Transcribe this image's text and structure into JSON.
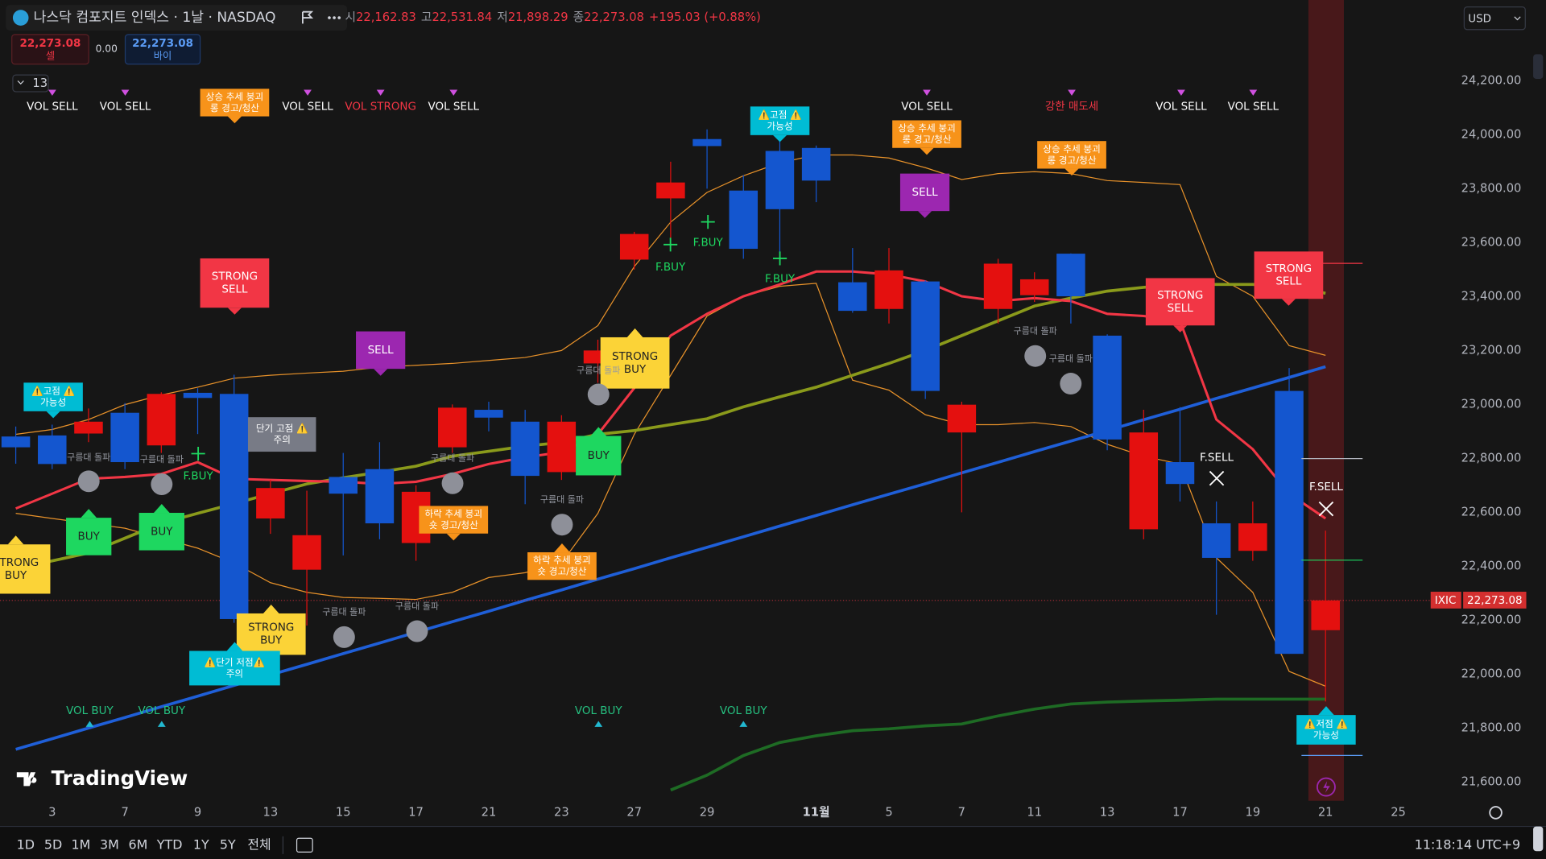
{
  "header": {
    "symbol": "나스닥 컴포지트 인덱스 · 1날 · NASDAQ",
    "open_label": "시",
    "open": "22,162.83",
    "high_label": "고",
    "high": "22,531.84",
    "low_label": "저",
    "low": "21,898.29",
    "close_label": "종",
    "close": "22,273.08",
    "change": "+195.03 (+0.88%)"
  },
  "order": {
    "sell_price": "22,273.08",
    "sell_label": "셀",
    "spread": "0.00",
    "buy_price": "22,273.08",
    "buy_label": "바이"
  },
  "indicator_count": "13",
  "currency": "USD",
  "price_tag": {
    "symbol": "IXIC",
    "price": "22,273.08"
  },
  "logo": "TradingView",
  "chart_data": {
    "type": "candlestick",
    "categories": [
      null,
      "3",
      null,
      "7",
      null,
      "9",
      null,
      "13",
      null,
      "15",
      null,
      "17",
      null,
      "21",
      null,
      "23",
      null,
      "27",
      null,
      "29",
      null,
      null,
      "11월",
      null,
      "5",
      null,
      "7",
      null,
      "11",
      null,
      "13",
      null,
      "17",
      null,
      "19",
      null,
      "21",
      null,
      "25"
    ],
    "open": [
      22881,
      22885,
      22892,
      22969,
      22848,
      23043,
      23039,
      22577,
      22387,
      22731,
      22760,
      22486,
      22841,
      22980,
      22936,
      22749,
      23152,
      23537,
      23764,
      23984,
      23793,
      23940,
      23951,
      23453,
      23354,
      23456,
      22896,
      23354,
      23405,
      23559,
      23255,
      22537,
      22786,
      22559,
      22457,
      23050,
      22162.83,
      null,
      null
    ],
    "high": [
      22918,
      22925,
      22985,
      23005,
      23045,
      23060,
      23110,
      22720,
      22680,
      22820,
      22860,
      22700,
      23000,
      23010,
      22980,
      22960,
      23240,
      23640,
      23900,
      24020,
      23850,
      23980,
      23960,
      23580,
      23580,
      23460,
      23010,
      23540,
      23490,
      23560,
      23260,
      22980,
      22990,
      22640,
      22640,
      23135,
      22531.84,
      null,
      null
    ],
    "low": [
      22780,
      22760,
      22860,
      22760,
      22820,
      22890,
      22190,
      22520,
      22180,
      22440,
      22500,
      22420,
      22820,
      22900,
      22630,
      22720,
      23080,
      23500,
      23590,
      23800,
      23540,
      23560,
      23750,
      23340,
      23300,
      23020,
      22600,
      23300,
      23380,
      23300,
      22830,
      22500,
      22640,
      22220,
      22420,
      22075,
      21898.29,
      null,
      null
    ],
    "close": [
      22841,
      22779,
      22936,
      22786,
      23039,
      23024,
      22204,
      22690,
      22515,
      22669,
      22559,
      22676,
      22988,
      22951,
      22735,
      22936,
      23200,
      23632,
      23823,
      23958,
      23577,
      23724,
      23830,
      23347,
      23497,
      23050,
      22999,
      23522,
      23464,
      23401,
      22870,
      22896,
      22705,
      22431,
      22559,
      22075,
      22273.08,
      null,
      null
    ],
    "up_color": "#e4100f",
    "down_color": "#1456cf",
    "lines": [
      {
        "color": "#e8922a",
        "width": 1,
        "values": [
          22889,
          22907,
          22944,
          22999,
          23035,
          23064,
          23097,
          23108,
          23116,
          23123,
          23138,
          23145,
          23152,
          23163,
          23174,
          23200,
          23292,
          23511,
          23676,
          23786,
          23848,
          23896,
          23925,
          23925,
          23914,
          23878,
          23834,
          23856,
          23863,
          23856,
          23830,
          23823,
          23815,
          23475,
          23401,
          23218,
          23182,
          null,
          null
        ]
      },
      {
        "color": "#e8922a",
        "width": 1,
        "values": [
          22596,
          22577,
          22559,
          22541,
          22504,
          22467,
          22412,
          22339,
          22303,
          22284,
          22281,
          22277,
          22303,
          22358,
          22376,
          22412,
          22596,
          22889,
          23108,
          23328,
          23401,
          23438,
          23449,
          23090,
          23053,
          22962,
          22925,
          22925,
          22933,
          22918,
          22852,
          22808,
          22779,
          22431,
          22303,
          22010,
          21955,
          null,
          null
        ]
      },
      {
        "color": "#8a9a1b",
        "width": 3,
        "values": [
          22394,
          22420,
          22449,
          22504,
          22559,
          22596,
          22632,
          22669,
          22705,
          22728,
          22749,
          22771,
          22808,
          22826,
          22845,
          22859,
          22889,
          22903,
          22925,
          22947,
          22991,
          23028,
          23064,
          23108,
          23152,
          23200,
          23255,
          23310,
          23365,
          23394,
          23420,
          23434,
          23445,
          23445,
          23445,
          23438,
          23412,
          null,
          null
        ]
      },
      {
        "color": "#1f5fd8",
        "width": 3,
        "values": [
          21721,
          21760,
          21800,
          21839,
          21879,
          21918,
          21958,
          21997,
          22036,
          22076,
          22115,
          22155,
          22194,
          22233,
          22273,
          22312,
          22352,
          22391,
          22431,
          22470,
          22509,
          22549,
          22588,
          22628,
          22667,
          22706,
          22746,
          22785,
          22825,
          22864,
          22903,
          22943,
          22982,
          23022,
          23061,
          23100,
          23140,
          null,
          null
        ]
      },
      {
        "color": "#1e6b24",
        "width": 3,
        "values": [
          null,
          null,
          null,
          null,
          null,
          null,
          null,
          null,
          null,
          null,
          null,
          null,
          null,
          null,
          null,
          null,
          null,
          null,
          21570,
          21625,
          21698,
          21746,
          21771,
          21790,
          21797,
          21808,
          21815,
          21845,
          21870,
          21889,
          21896,
          21900,
          21903,
          21907,
          21907,
          21907,
          21907,
          null,
          null
        ]
      },
      {
        "color": "#f23645",
        "width": 2.5,
        "values": [
          22614,
          22669,
          22724,
          22731,
          22742,
          22786,
          22724,
          22720,
          22716,
          22713,
          22705,
          22713,
          22742,
          22779,
          22804,
          22823,
          22889,
          23061,
          23255,
          23336,
          23401,
          23445,
          23493,
          23493,
          23482,
          23456,
          23401,
          23383,
          23394,
          23383,
          23336,
          23328,
          23310,
          22944,
          22834,
          22669,
          22577,
          null,
          null
        ]
      }
    ],
    "ylim": [
      21530,
      24390
    ],
    "yticks": [
      {
        "value": 21600,
        "label": "21,600.00"
      },
      {
        "value": 21800,
        "label": "21,800.00"
      },
      {
        "value": 22000,
        "label": "22,000.00"
      },
      {
        "value": 22200,
        "label": "22,200.00"
      },
      {
        "value": 22400,
        "label": "22,400.00"
      },
      {
        "value": 22600,
        "label": "22,600.00"
      },
      {
        "value": 22800,
        "label": "22,800.00"
      },
      {
        "value": 23000,
        "label": "23,000.00"
      },
      {
        "value": 23200,
        "label": "23,200.00"
      },
      {
        "value": 23400,
        "label": "23,400.00"
      },
      {
        "value": 23600,
        "label": "23,600.00"
      },
      {
        "value": 23800,
        "label": "23,800.00"
      },
      {
        "value": 24000,
        "label": "24,000.00"
      },
      {
        "value": 24200,
        "label": "24,200.00"
      }
    ],
    "grid": false
  },
  "signals": [
    [
      "VOL SELL"
    ],
    [
      "VOL SELL"
    ],
    [
      "상승 추세 붕괴",
      "롱 경고/청산"
    ],
    [
      "VOL SELL"
    ],
    [
      "VOL STRONG"
    ],
    [
      "VOL SELL"
    ],
    [
      "VOL SELL"
    ],
    [
      "강한 매도세"
    ],
    [
      "VOL SELL"
    ],
    [
      "VOL SELL"
    ],
    [
      "⚠️고점 ⚠️",
      "가능성"
    ],
    [
      "상승 추세 붕괴",
      "롱 경고/청산"
    ],
    [
      "상승 추세 붕괴",
      "롱 경고/청산"
    ],
    [
      "SELL"
    ],
    [
      "STRONG",
      "SELL"
    ],
    [
      "SELL"
    ],
    [
      "STRONG",
      "BUY"
    ],
    [
      "STRONG",
      "SELL"
    ],
    [
      "STRONG",
      "SELL"
    ],
    [
      "⚠️고점 ⚠️",
      "가능성"
    ],
    [
      "단기 고점 ⚠️",
      "주의"
    ],
    [
      "BUY"
    ],
    [
      "BUY"
    ],
    [
      "BUY"
    ],
    [
      "STRONG",
      "BUY"
    ],
    [
      "하락 추세 붕괴",
      "숏 경고/청산"
    ],
    [
      "하락 추세 붕괴",
      "숏 경고/청산"
    ],
    [
      "STRONG",
      "BUY"
    ],
    [
      "⚠️단기 저점⚠️",
      "주의"
    ],
    [
      "⚠️저점 ⚠️",
      "가능성"
    ],
    [
      "F.BUY"
    ],
    [
      "F.BUY"
    ],
    [
      "F.BUY"
    ],
    [
      "F.BUY"
    ],
    [
      "F.SELL"
    ],
    [
      "F.SELL"
    ],
    [
      "구름대 돌파"
    ],
    [
      "구름대 돌파"
    ],
    [
      "구름대 돌파"
    ],
    [
      "구름대 돌파"
    ],
    [
      "구름대 돌파"
    ],
    [
      "구름대 돌파"
    ],
    [
      "구름대 돌파"
    ],
    [
      "구름대 돌파"
    ],
    [
      "구름대 돌파"
    ],
    [
      "VOL BUY"
    ],
    [
      "VOL BUY"
    ],
    [
      "VOL BUY"
    ],
    [
      "VOL BUY"
    ]
  ],
  "bottom_bar": {
    "ranges": [
      "1D",
      "5D",
      "1M",
      "3M",
      "6M",
      "YTD",
      "1Y",
      "5Y",
      "전체"
    ],
    "time": "11:18:14 UTC+9"
  }
}
